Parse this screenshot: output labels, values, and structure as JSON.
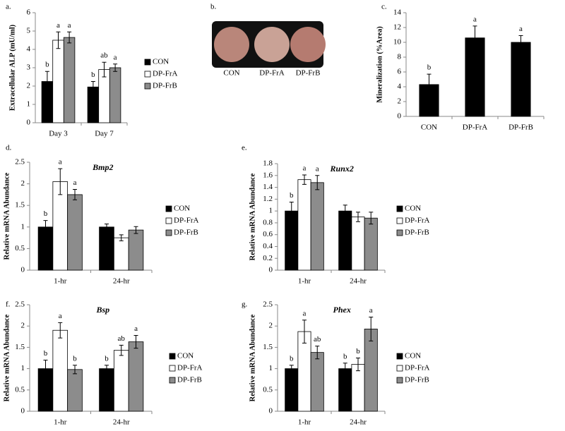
{
  "chart_data": [
    {
      "type": "bar",
      "panel": "a.",
      "y_label": "Extracellular ALP (mU/ml)",
      "categories": [
        "Day 3",
        "Day 7"
      ],
      "series": [
        {
          "name": "CON",
          "color": "#000000",
          "values": [
            2.25,
            1.95
          ],
          "errors": [
            0.55,
            0.3
          ],
          "annotations": [
            "b",
            "b"
          ]
        },
        {
          "name": "DP-FrA",
          "color": "#ffffff",
          "values": [
            4.5,
            2.9
          ],
          "errors": [
            0.45,
            0.4
          ],
          "annotations": [
            "a",
            "ab"
          ]
        },
        {
          "name": "DP-FrB",
          "color": "#8c8c8c",
          "values": [
            4.65,
            3.0
          ],
          "errors": [
            0.3,
            0.2
          ],
          "annotations": [
            "a",
            "a"
          ]
        }
      ],
      "ylim": [
        0,
        6
      ],
      "yticks": [
        0,
        1,
        2,
        3,
        4,
        5,
        6
      ]
    },
    {
      "type": "bar",
      "panel": "c.",
      "y_label": "Mineralization (%Area)",
      "categories": [
        "CON",
        "DP-FrA",
        "DP-FrB"
      ],
      "values": [
        4.3,
        10.6,
        10.0
      ],
      "errors": [
        1.4,
        1.6,
        0.9
      ],
      "annotations": [
        "b",
        "a",
        "a"
      ],
      "color": "#000000",
      "ylim": [
        0,
        14
      ],
      "yticks": [
        0,
        2,
        4,
        6,
        8,
        10,
        12,
        14
      ]
    },
    {
      "type": "bar",
      "panel": "d.",
      "title": "Bmp2",
      "y_label": "Relative mRNA Abundance",
      "categories": [
        "1-hr",
        "24-hr"
      ],
      "series": [
        {
          "name": "CON",
          "color": "#000000",
          "values": [
            1,
            1
          ],
          "errors": [
            0.15,
            0.07
          ],
          "annotations": [
            "b",
            null
          ]
        },
        {
          "name": "DP-FrA",
          "color": "#ffffff",
          "values": [
            2.05,
            0.75
          ],
          "errors": [
            0.3,
            0.07
          ],
          "annotations": [
            "a",
            null
          ]
        },
        {
          "name": "DP-FrB",
          "color": "#8c8c8c",
          "values": [
            1.75,
            0.93
          ],
          "errors": [
            0.12,
            0.08
          ],
          "annotations": [
            "a",
            null
          ]
        }
      ],
      "ylim": [
        0,
        2.5
      ],
      "yticks": [
        0,
        0.5,
        1,
        1.5,
        2,
        2.5
      ]
    },
    {
      "type": "bar",
      "panel": "e.",
      "title": "Runx2",
      "y_label": "Relative mRNA Abundance",
      "categories": [
        "1-hr",
        "24-hr"
      ],
      "series": [
        {
          "name": "CON",
          "color": "#000000",
          "values": [
            1,
            1
          ],
          "errors": [
            0.15,
            0.1
          ],
          "annotations": [
            "b",
            null
          ]
        },
        {
          "name": "DP-FrA",
          "color": "#ffffff",
          "values": [
            1.53,
            0.9
          ],
          "errors": [
            0.08,
            0.08
          ],
          "annotations": [
            "a",
            null
          ]
        },
        {
          "name": "DP-FrB",
          "color": "#8c8c8c",
          "values": [
            1.48,
            0.88
          ],
          "errors": [
            0.12,
            0.1
          ],
          "annotations": [
            "a",
            null
          ]
        }
      ],
      "ylim": [
        0,
        1.8
      ],
      "yticks": [
        0,
        0.2,
        0.4,
        0.6,
        0.8,
        1,
        1.2,
        1.4,
        1.6,
        1.8
      ]
    },
    {
      "type": "bar",
      "panel": "f.",
      "title": "Bsp",
      "y_label": "Relative mRNA Abundance",
      "categories": [
        "1-hr",
        "24-hr"
      ],
      "series": [
        {
          "name": "CON",
          "color": "#000000",
          "values": [
            1,
            1
          ],
          "errors": [
            0.2,
            0.08
          ],
          "annotations": [
            "b",
            "b"
          ]
        },
        {
          "name": "DP-FrA",
          "color": "#ffffff",
          "values": [
            1.9,
            1.43
          ],
          "errors": [
            0.18,
            0.12
          ],
          "annotations": [
            "a",
            "ab"
          ]
        },
        {
          "name": "DP-FrB",
          "color": "#8c8c8c",
          "values": [
            0.98,
            1.63
          ],
          "errors": [
            0.1,
            0.15
          ],
          "annotations": [
            "b",
            "a"
          ]
        }
      ],
      "ylim": [
        0,
        2.5
      ],
      "yticks": [
        0,
        0.5,
        1,
        1.5,
        2,
        2.5
      ]
    },
    {
      "type": "bar",
      "panel": "g.",
      "title": "Phex",
      "y_label": "Relative mRNA Abundance",
      "categories": [
        "1-hr",
        "24-hr"
      ],
      "series": [
        {
          "name": "CON",
          "color": "#000000",
          "values": [
            1,
            1
          ],
          "errors": [
            0.08,
            0.13
          ],
          "annotations": [
            "b",
            "b"
          ]
        },
        {
          "name": "DP-FrA",
          "color": "#ffffff",
          "values": [
            1.87,
            1.1
          ],
          "errors": [
            0.27,
            0.15
          ],
          "annotations": [
            "a",
            "b"
          ]
        },
        {
          "name": "DP-FrB",
          "color": "#8c8c8c",
          "values": [
            1.38,
            1.93
          ],
          "errors": [
            0.15,
            0.28
          ],
          "annotations": [
            "ab",
            "a"
          ]
        }
      ],
      "ylim": [
        0,
        2.5
      ],
      "yticks": [
        0,
        0.5,
        1,
        1.5,
        2,
        2.5
      ]
    }
  ],
  "photo_panel": {
    "panel": "b.",
    "captions": [
      "CON",
      "DP-FrA",
      "DP-FrB"
    ]
  }
}
